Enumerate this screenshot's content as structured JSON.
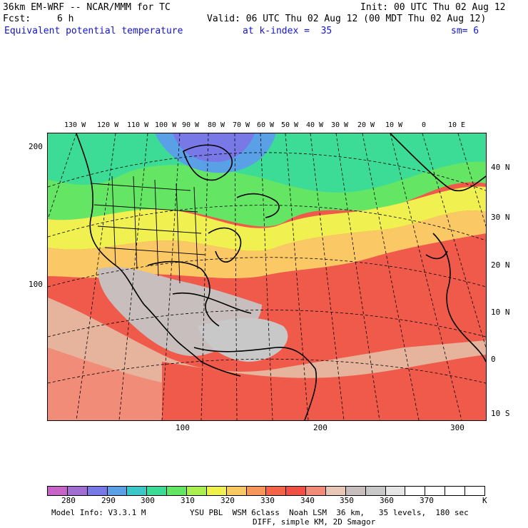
{
  "header": {
    "model": "36km EM-WRF -- NCAR/MMM for TC",
    "init": "Init: 00 UTC Thu 02 Aug 12",
    "fcst_label": "Fcst:",
    "fcst_value": "6 h",
    "valid": "Valid: 06 UTC Thu 02 Aug 12 (00 MDT Thu 02 Aug 12)",
    "field": "Equivalent potential temperature",
    "level": "at k-index =  35",
    "smooth": "sm= 6"
  },
  "axes": {
    "top_lon": [
      "130 W",
      "120 W",
      "110 W",
      "100 W",
      "90 W",
      "80 W",
      "70 W",
      "60 W",
      "50 W",
      "40 W",
      "30 W",
      "20 W",
      "10 W",
      "0",
      "10 E"
    ],
    "right_lat": [
      "40 N",
      "30 N",
      "20 N",
      "10 N",
      "0",
      "10 S"
    ],
    "left_grid": [
      "200",
      "100"
    ],
    "bottom_grid": [
      "100",
      "200",
      "300"
    ]
  },
  "colorbar": {
    "colors": [
      "#c864c8",
      "#a06ed2",
      "#7878e6",
      "#5aa0e6",
      "#3cc8c8",
      "#3cdc96",
      "#64e664",
      "#aaf050",
      "#f0f050",
      "#fac864",
      "#f5965a",
      "#f56446",
      "#f05046",
      "#f08c78",
      "#e6c8b4",
      "#c8bebe",
      "#c8c8c8",
      "#e6e6e6",
      "#ffffff",
      "#ffffff",
      "#ffffff",
      "#ffffff"
    ],
    "labels": [
      "280",
      "290",
      "300",
      "310",
      "320",
      "330",
      "340",
      "350",
      "360",
      "370"
    ],
    "unit": "K"
  },
  "footer": {
    "model_info": "Model Info: V3.3.1 M",
    "physics": "YSU PBL  WSM 6class  Noah LSM  36 km,   35 levels,  180 sec",
    "diff": "DIFF, simple KM, 2D Smagor"
  }
}
